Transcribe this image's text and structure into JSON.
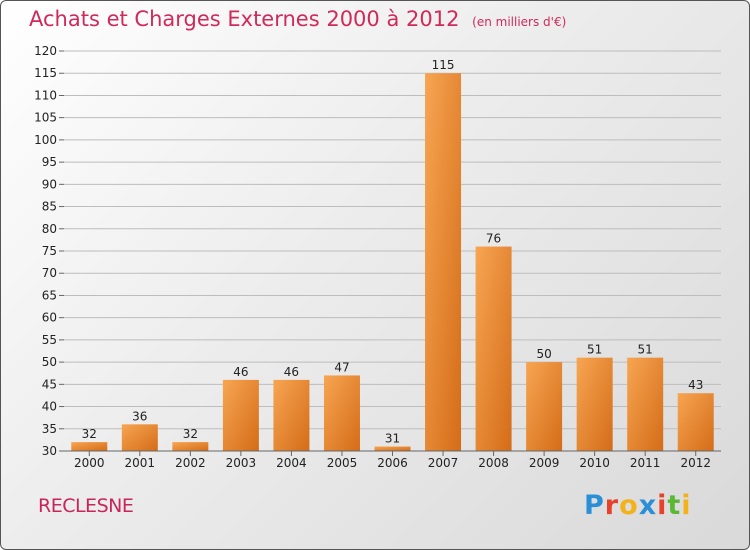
{
  "header": {
    "title": "Achats et Charges Externes 2000 à 2012",
    "subtitle": "(en milliers d'€)"
  },
  "footer": {
    "commune": "RECLESNE",
    "logo": {
      "letters": [
        "P",
        "r",
        "o",
        "x",
        "i",
        "t",
        "i"
      ],
      "colors": [
        "#2a8fd6",
        "#e8402a",
        "#f3b21a",
        "#2a8fd6",
        "#e8402a",
        "#5ab833",
        "#f3b21a"
      ]
    }
  },
  "colors": {
    "bar_light": "#f7a552",
    "bar_dark": "#d46c18",
    "grid": "#bdbdbd",
    "accent": "#d02a5a"
  },
  "chart_data": {
    "type": "bar",
    "title": "Achats et Charges Externes 2000 à 2012",
    "subtitle": "(en milliers d'€)",
    "categories": [
      "2000",
      "2001",
      "2002",
      "2003",
      "2004",
      "2005",
      "2006",
      "2007",
      "2008",
      "2009",
      "2010",
      "2011",
      "2012"
    ],
    "values": [
      32,
      36,
      32,
      46,
      46,
      47,
      31,
      115,
      76,
      50,
      51,
      51,
      43
    ],
    "ylim": [
      30,
      120
    ],
    "yticks": [
      30,
      35,
      40,
      45,
      50,
      55,
      60,
      65,
      70,
      75,
      80,
      85,
      90,
      95,
      100,
      105,
      110,
      115,
      120
    ],
    "grid": true,
    "xlabel": "",
    "ylabel": ""
  }
}
